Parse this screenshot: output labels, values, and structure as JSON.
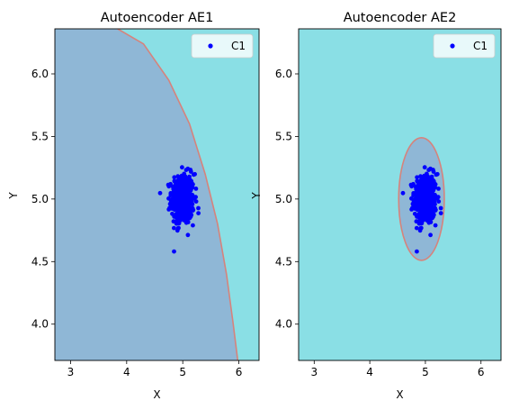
{
  "chart_data": [
    {
      "type": "scatter",
      "title": "Autoencoder AE1",
      "xlabel": "X",
      "ylabel": "Y",
      "xlim": [
        2.72,
        6.36
      ],
      "ylim": [
        3.71,
        6.36
      ],
      "xticks": [
        "3",
        "4",
        "5",
        "6"
      ],
      "yticks": [
        "4.0",
        "4.5",
        "5.0",
        "5.5",
        "6.0"
      ],
      "background_colors": {
        "inside": "#8fb7d6",
        "outside": "#8adfe5",
        "boundary": "#d6837c"
      },
      "decision_boundary": {
        "shape": "curve",
        "points": [
          [
            3.84,
            6.36
          ],
          [
            4.3,
            6.24
          ],
          [
            4.75,
            5.95
          ],
          [
            5.12,
            5.6
          ],
          [
            5.4,
            5.2
          ],
          [
            5.62,
            4.8
          ],
          [
            5.78,
            4.4
          ],
          [
            5.9,
            4.0
          ],
          [
            5.98,
            3.71
          ]
        ]
      },
      "series": [
        {
          "name": "C1",
          "color": "#0000ff",
          "center": [
            5.0,
            5.0
          ],
          "spread": [
            0.1,
            0.1
          ],
          "count": 450
        }
      ],
      "legend": "top-right"
    },
    {
      "type": "scatter",
      "title": "Autoencoder AE2",
      "xlabel": "X",
      "ylabel": "Y",
      "xlim": [
        2.72,
        6.36
      ],
      "ylim": [
        3.71,
        6.36
      ],
      "xticks": [
        "3",
        "4",
        "5",
        "6"
      ],
      "yticks": [
        "4.0",
        "4.5",
        "5.0",
        "5.5",
        "6.0"
      ],
      "background_colors": {
        "inside": "#8fb7d6",
        "outside": "#8adfe5",
        "boundary": "#d6837c"
      },
      "decision_boundary": {
        "shape": "ellipse",
        "center": [
          4.93,
          5.0
        ],
        "radius": [
          0.41,
          0.49
        ]
      },
      "series": [
        {
          "name": "C1",
          "color": "#0000ff",
          "center": [
            5.0,
            5.0
          ],
          "spread": [
            0.1,
            0.1
          ],
          "count": 450
        }
      ],
      "legend": "top-right"
    }
  ]
}
